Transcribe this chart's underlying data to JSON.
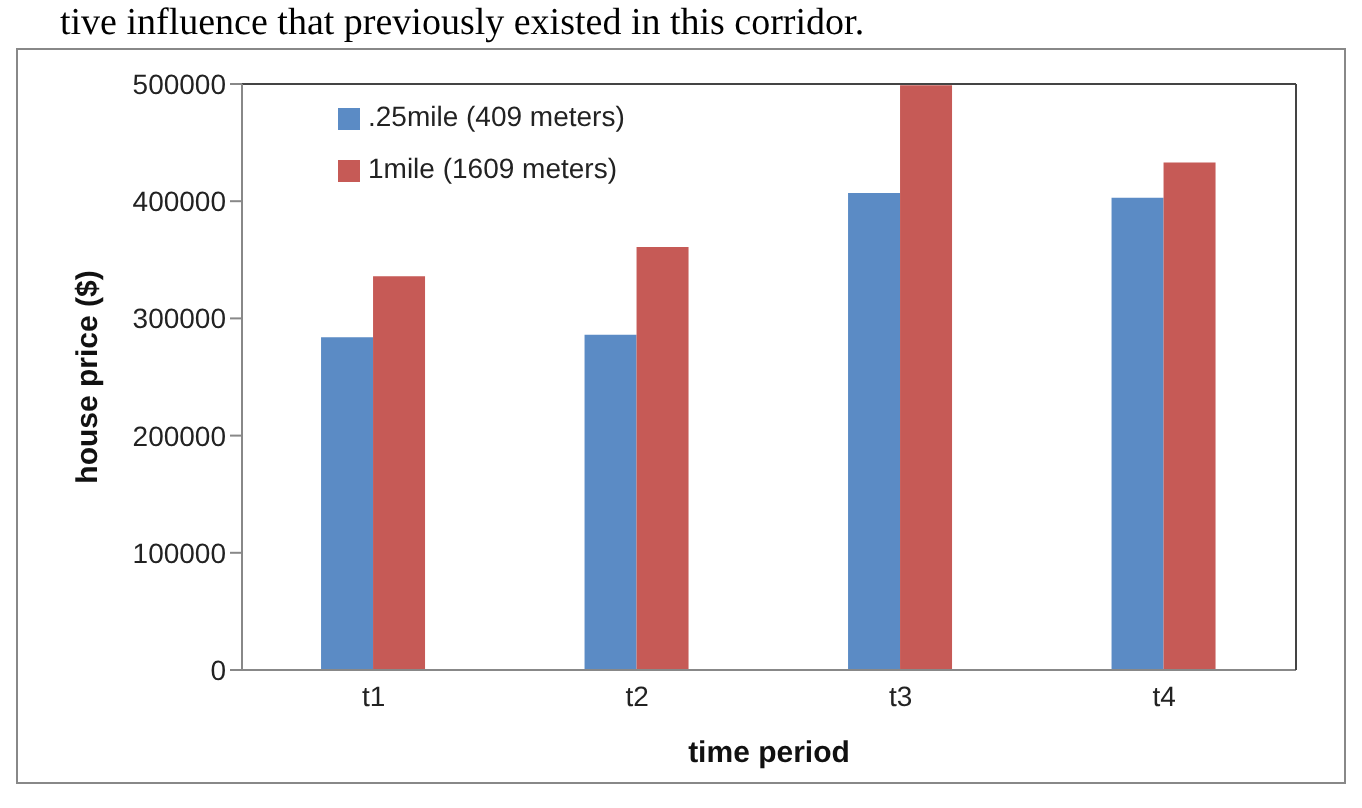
{
  "chart_data": {
    "type": "bar",
    "categories": [
      "t1",
      "t2",
      "t3",
      "t4"
    ],
    "series": [
      {
        "name": ".25mile (409 meters)",
        "color": "#5b8bc5",
        "values": [
          284000,
          286000,
          407000,
          403000
        ]
      },
      {
        "name": "1mile (1609 meters)",
        "color": "#c65a56",
        "values": [
          336000,
          361000,
          499000,
          433000
        ]
      }
    ],
    "xlabel": "time period",
    "ylabel": "house price ($)",
    "ylim": [
      0,
      500000
    ],
    "yticks": [
      0,
      100000,
      200000,
      300000,
      400000,
      500000
    ],
    "grid": false,
    "legend": "top left",
    "annotations": [
      "tive influence that previously existed in this corridor."
    ]
  }
}
